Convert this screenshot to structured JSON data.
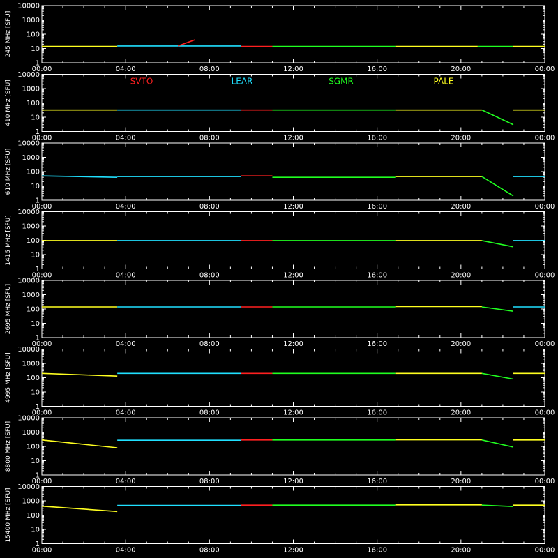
{
  "chart_data": {
    "type": "line",
    "y_scale": "log",
    "ylim": [
      1,
      10000
    ],
    "y_ticks": [
      "1",
      "10",
      "100",
      "1000",
      "10000"
    ],
    "x_range_hours": [
      0,
      24
    ],
    "x_ticks": [
      "00:00",
      "04:00",
      "08:00",
      "12:00",
      "16:00",
      "20:00",
      "00:00"
    ],
    "grid": false,
    "legend_position": "top (second panel)",
    "series_colors": {
      "SVTO": "#ff2020",
      "LEAR": "#20e0ff",
      "SGMR": "#20ff20",
      "PALE": "#ffff20"
    },
    "legend": [
      {
        "name": "SVTO",
        "color": "#ff2020"
      },
      {
        "name": "LEAR",
        "color": "#20e0ff"
      },
      {
        "name": "SGMR",
        "color": "#20ff20"
      },
      {
        "name": "PALE",
        "color": "#ffff20"
      }
    ],
    "panels": [
      {
        "ylabel": "245 MHz [SFU]",
        "base": 14,
        "segments": [
          {
            "station": "PALE",
            "x": [
              0.0,
              3.6
            ],
            "y": [
              14,
              14
            ]
          },
          {
            "station": "LEAR",
            "x": [
              3.6,
              9.5
            ],
            "y": [
              15,
              15
            ]
          },
          {
            "station": "SVTO",
            "x": [
              6.5,
              7.3
            ],
            "y": [
              15,
              40
            ]
          },
          {
            "station": "SVTO",
            "x": [
              9.5,
              11.0
            ],
            "y": [
              14,
              14
            ]
          },
          {
            "station": "SGMR",
            "x": [
              11.0,
              16.9
            ],
            "y": [
              14,
              14
            ]
          },
          {
            "station": "PALE",
            "x": [
              16.9,
              20.8
            ],
            "y": [
              14,
              14
            ]
          },
          {
            "station": "SGMR",
            "x": [
              20.8,
              22.5
            ],
            "y": [
              14,
              14
            ]
          },
          {
            "station": "PALE",
            "x": [
              22.5,
              24.0
            ],
            "y": [
              14,
              14
            ]
          }
        ]
      },
      {
        "ylabel": "410 MHz [SFU]",
        "base": 32,
        "segments": [
          {
            "station": "PALE",
            "x": [
              0.0,
              3.6
            ],
            "y": [
              32,
              32
            ]
          },
          {
            "station": "LEAR",
            "x": [
              3.6,
              9.5
            ],
            "y": [
              32,
              32
            ]
          },
          {
            "station": "SVTO",
            "x": [
              9.5,
              11.0
            ],
            "y": [
              32,
              32
            ]
          },
          {
            "station": "SGMR",
            "x": [
              11.0,
              16.9
            ],
            "y": [
              32,
              32
            ]
          },
          {
            "station": "PALE",
            "x": [
              16.9,
              21.0
            ],
            "y": [
              32,
              32
            ]
          },
          {
            "station": "SGMR",
            "x": [
              21.0,
              22.5
            ],
            "y": [
              32,
              3
            ]
          },
          {
            "station": "PALE",
            "x": [
              22.5,
              24.0
            ],
            "y": [
              32,
              32
            ]
          }
        ]
      },
      {
        "ylabel": "610 MHz [SFU]",
        "base": 45,
        "segments": [
          {
            "station": "LEAR",
            "x": [
              0.0,
              3.6
            ],
            "y": [
              50,
              40
            ]
          },
          {
            "station": "LEAR",
            "x": [
              3.6,
              9.5
            ],
            "y": [
              45,
              45
            ]
          },
          {
            "station": "SVTO",
            "x": [
              9.5,
              11.0
            ],
            "y": [
              50,
              50
            ]
          },
          {
            "station": "SGMR",
            "x": [
              11.0,
              16.9
            ],
            "y": [
              40,
              40
            ]
          },
          {
            "station": "PALE",
            "x": [
              16.9,
              21.0
            ],
            "y": [
              45,
              45
            ]
          },
          {
            "station": "SGMR",
            "x": [
              21.0,
              22.5
            ],
            "y": [
              45,
              2
            ]
          },
          {
            "station": "LEAR",
            "x": [
              22.5,
              24.0
            ],
            "y": [
              45,
              45
            ]
          }
        ]
      },
      {
        "ylabel": "1415 MHz [SFU]",
        "base": 95,
        "segments": [
          {
            "station": "PALE",
            "x": [
              0.0,
              3.6
            ],
            "y": [
              95,
              95
            ]
          },
          {
            "station": "LEAR",
            "x": [
              3.6,
              9.5
            ],
            "y": [
              95,
              95
            ]
          },
          {
            "station": "SVTO",
            "x": [
              9.5,
              11.0
            ],
            "y": [
              95,
              95
            ]
          },
          {
            "station": "SGMR",
            "x": [
              11.0,
              16.9
            ],
            "y": [
              95,
              95
            ]
          },
          {
            "station": "PALE",
            "x": [
              16.9,
              21.0
            ],
            "y": [
              95,
              95
            ]
          },
          {
            "station": "SGMR",
            "x": [
              21.0,
              22.5
            ],
            "y": [
              95,
              35
            ]
          },
          {
            "station": "LEAR",
            "x": [
              22.5,
              24.0
            ],
            "y": [
              95,
              95
            ]
          }
        ]
      },
      {
        "ylabel": "2695 MHz [SFU]",
        "base": 140,
        "segments": [
          {
            "station": "PALE",
            "x": [
              0.0,
              3.6
            ],
            "y": [
              140,
              140
            ]
          },
          {
            "station": "LEAR",
            "x": [
              3.6,
              9.5
            ],
            "y": [
              140,
              140
            ]
          },
          {
            "station": "SVTO",
            "x": [
              9.5,
              11.0
            ],
            "y": [
              140,
              140
            ]
          },
          {
            "station": "SGMR",
            "x": [
              11.0,
              16.9
            ],
            "y": [
              140,
              140
            ]
          },
          {
            "station": "PALE",
            "x": [
              16.9,
              21.0
            ],
            "y": [
              150,
              150
            ]
          },
          {
            "station": "SGMR",
            "x": [
              21.0,
              22.5
            ],
            "y": [
              140,
              70
            ]
          },
          {
            "station": "LEAR",
            "x": [
              22.5,
              24.0
            ],
            "y": [
              140,
              140
            ]
          }
        ]
      },
      {
        "ylabel": "4995 MHz [SFU]",
        "base": 200,
        "segments": [
          {
            "station": "PALE",
            "x": [
              0.0,
              3.6
            ],
            "y": [
              200,
              130
            ]
          },
          {
            "station": "LEAR",
            "x": [
              3.6,
              9.5
            ],
            "y": [
              200,
              200
            ]
          },
          {
            "station": "SVTO",
            "x": [
              9.5,
              11.0
            ],
            "y": [
              200,
              200
            ]
          },
          {
            "station": "SGMR",
            "x": [
              11.0,
              16.9
            ],
            "y": [
              200,
              200
            ]
          },
          {
            "station": "PALE",
            "x": [
              16.9,
              21.0
            ],
            "y": [
              200,
              200
            ]
          },
          {
            "station": "SGMR",
            "x": [
              21.0,
              22.5
            ],
            "y": [
              200,
              80
            ]
          },
          {
            "station": "PALE",
            "x": [
              22.5,
              24.0
            ],
            "y": [
              200,
              200
            ]
          }
        ]
      },
      {
        "ylabel": "8800 MHz [SFU]",
        "base": 280,
        "segments": [
          {
            "station": "PALE",
            "x": [
              0.0,
              3.6
            ],
            "y": [
              280,
              80
            ]
          },
          {
            "station": "LEAR",
            "x": [
              3.6,
              9.5
            ],
            "y": [
              270,
              270
            ]
          },
          {
            "station": "SVTO",
            "x": [
              9.5,
              11.0
            ],
            "y": [
              280,
              280
            ]
          },
          {
            "station": "SGMR",
            "x": [
              11.0,
              16.9
            ],
            "y": [
              280,
              280
            ]
          },
          {
            "station": "PALE",
            "x": [
              16.9,
              21.0
            ],
            "y": [
              290,
              290
            ]
          },
          {
            "station": "SGMR",
            "x": [
              21.0,
              22.5
            ],
            "y": [
              280,
              90
            ]
          },
          {
            "station": "PALE",
            "x": [
              22.5,
              24.0
            ],
            "y": [
              280,
              280
            ]
          }
        ]
      },
      {
        "ylabel": "15400 MHz [SFU]",
        "base": 500,
        "segments": [
          {
            "station": "PALE",
            "x": [
              0.0,
              3.6
            ],
            "y": [
              420,
              180
            ]
          },
          {
            "station": "LEAR",
            "x": [
              3.6,
              9.5
            ],
            "y": [
              480,
              480
            ]
          },
          {
            "station": "SVTO",
            "x": [
              9.5,
              11.0
            ],
            "y": [
              500,
              500
            ]
          },
          {
            "station": "SGMR",
            "x": [
              11.0,
              16.9
            ],
            "y": [
              500,
              500
            ]
          },
          {
            "station": "PALE",
            "x": [
              16.9,
              21.0
            ],
            "y": [
              520,
              520
            ]
          },
          {
            "station": "SGMR",
            "x": [
              21.0,
              22.5
            ],
            "y": [
              500,
              400
            ]
          },
          {
            "station": "PALE",
            "x": [
              22.5,
              24.0
            ],
            "y": [
              500,
              500
            ]
          }
        ]
      }
    ]
  }
}
